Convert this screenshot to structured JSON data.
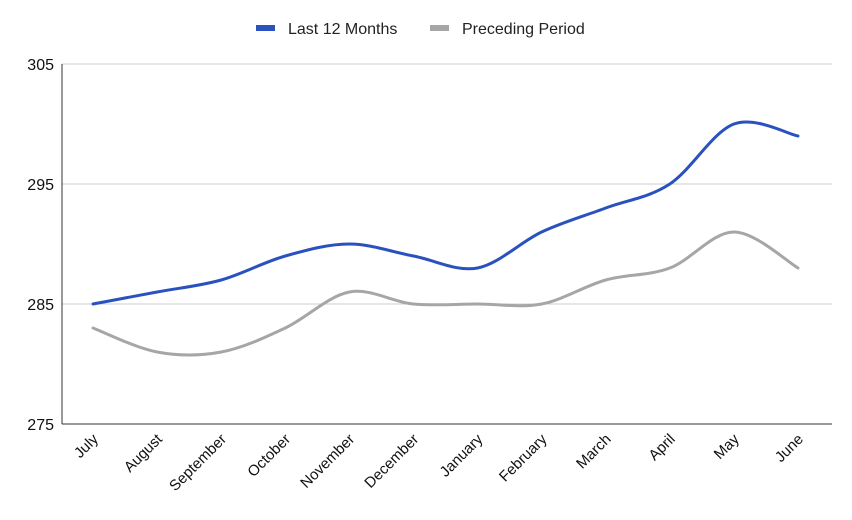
{
  "chart_data": {
    "type": "line",
    "categories": [
      "July",
      "August",
      "September",
      "October",
      "November",
      "December",
      "January",
      "February",
      "March",
      "April",
      "May",
      "June"
    ],
    "series": [
      {
        "name": "Last 12 Months",
        "color": "#2a52be",
        "values": [
          285,
          286,
          287,
          289,
          290,
          289,
          288,
          291,
          293,
          295,
          300,
          299
        ]
      },
      {
        "name": "Preceding Period",
        "color": "#a6a6a6",
        "values": [
          283,
          281,
          281,
          283,
          286,
          285,
          285,
          285,
          287,
          288,
          291,
          288
        ]
      }
    ],
    "yticks": [
      "305",
      "295",
      "285",
      "275"
    ],
    "ylim": [
      275,
      305
    ],
    "grid": true,
    "legend": "top-center",
    "smooth": true
  }
}
